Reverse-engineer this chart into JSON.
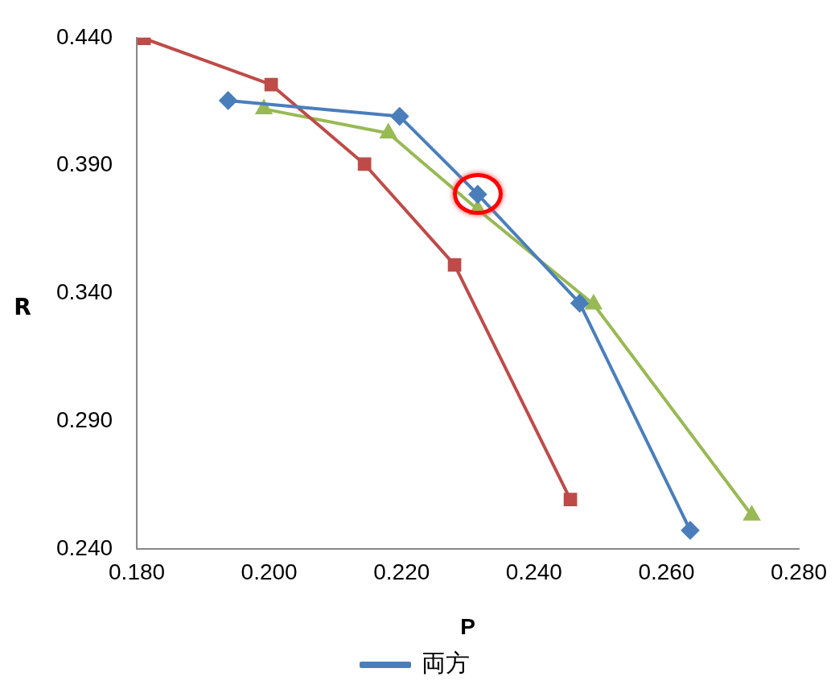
{
  "chart_data": {
    "type": "line",
    "xlabel": "P",
    "ylabel": "R",
    "legend": "bottom",
    "grid": false,
    "xlim": [
      0.18,
      0.28
    ],
    "ylim": [
      0.24,
      0.44
    ],
    "xticks": [
      {
        "value": 0.18,
        "label": "0.180"
      },
      {
        "value": 0.2,
        "label": "0.200"
      },
      {
        "value": 0.22,
        "label": "0.220"
      },
      {
        "value": 0.24,
        "label": "0.240"
      },
      {
        "value": 0.26,
        "label": "0.260"
      },
      {
        "value": 0.28,
        "label": "0.280"
      }
    ],
    "yticks": [
      {
        "value": 0.24,
        "label": "0.240"
      },
      {
        "value": 0.29,
        "label": "0.290"
      },
      {
        "value": 0.34,
        "label": "0.340"
      },
      {
        "value": 0.39,
        "label": "0.390"
      },
      {
        "value": 0.44,
        "label": "0.440"
      }
    ],
    "series": [
      {
        "name": "両方",
        "color": "#4a7ebb",
        "marker": "diamond",
        "x": [
          0.1938,
          0.2197,
          0.2315,
          0.2469,
          0.2636
        ],
        "values": [
          0.4154,
          0.4092,
          0.3787,
          0.3361,
          0.2472
        ]
      },
      {
        "color": "#be4b48",
        "marker": "square",
        "x": [
          0.1811,
          0.2003,
          0.2144,
          0.228,
          0.2455
        ],
        "values": [
          0.4397,
          0.4216,
          0.3905,
          0.3511,
          0.2593
        ]
      },
      {
        "color": "#98b954",
        "marker": "triangle",
        "x": [
          0.1992,
          0.218,
          0.2315,
          0.249,
          0.2729
        ],
        "values": [
          0.4121,
          0.4026,
          0.3728,
          0.3357,
          0.2531
        ]
      }
    ]
  }
}
